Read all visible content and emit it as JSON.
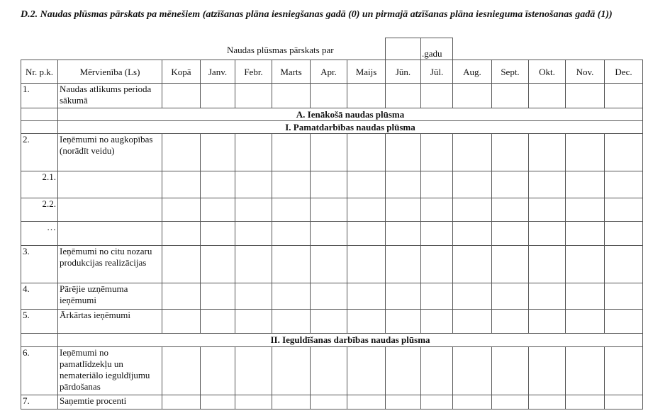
{
  "title": "D.2. Naudas plūsmas pārskats pa mēnešiem (atzīšanas plāna iesniegšanas gadā (0) un pirmajā atzīšanas plāna iesnieguma īstenošanas gadā (1))",
  "report_label": "Naudas plūsmas pārskats par",
  "year_value": "",
  "year_suffix": ".gadu",
  "columns": [
    "Nr. p.k.",
    "Mērvienība (Ls)",
    "Kopā",
    "Janv.",
    "Febr.",
    "Marts",
    "Apr.",
    "Maijs",
    "Jūn.",
    "Jūl.",
    "Aug.",
    "Sept.",
    "Okt.",
    "Nov.",
    "Dec."
  ],
  "rows": [
    {
      "nr": "1.",
      "label": "Naudas atlikums perioda sākumā"
    },
    {
      "section": "A. Ienākošā naudas plūsma"
    },
    {
      "section": "I. Pamatdarbības naudas plūsma"
    },
    {
      "nr": "2.",
      "label": "Ieņēmumi no augkopības (norādīt veidu)"
    },
    {
      "nr": "2.1.",
      "label": ""
    },
    {
      "nr": "2.2.",
      "label": ""
    },
    {
      "nr": "…",
      "label": ""
    },
    {
      "nr": "3.",
      "label": "Ieņēmumi no citu nozaru produkcijas realizācijas"
    },
    {
      "nr": "4.",
      "label": "Pārējie uzņēmuma ieņēmumi"
    },
    {
      "nr": "5.",
      "label": "Ārkārtas ieņēmumi"
    },
    {
      "section": "II. Ieguldīšanas darbības naudas plūsma"
    },
    {
      "nr": "6.",
      "label": "Ieņēmumi no pamatlīdzekļu un nemateriālo ieguldījumu pārdošanas"
    },
    {
      "nr": "7.",
      "label": "Saņemtie procenti"
    }
  ]
}
